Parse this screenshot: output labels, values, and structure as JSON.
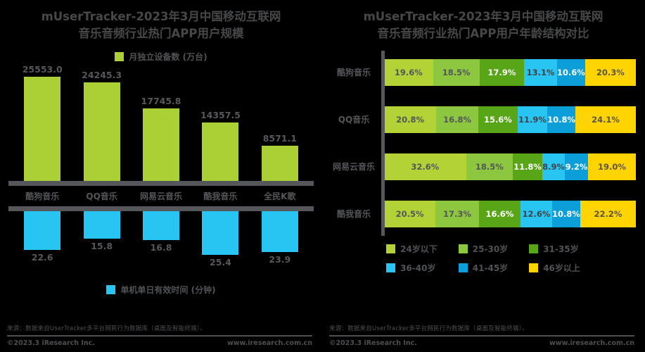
{
  "page": {
    "background": "#000000",
    "text_color": "#515255"
  },
  "chart_data": [
    {
      "type": "bar",
      "title_line1": "mUserTracker-2023年3月中国移动互联网",
      "title_line2": "音乐音频行业热门APP用户规模",
      "categories": [
        "酷狗音乐",
        "QQ音乐",
        "网易云音乐",
        "酷我音乐",
        "全民K歌"
      ],
      "series": [
        {
          "name": "月独立设备数 (万台)",
          "color": "#abd036",
          "orientation": "up",
          "values": [
            25553.0,
            24245.3,
            17745.8,
            14357.5,
            8571.1
          ],
          "labels": [
            "25553.0",
            "24245.3",
            "17745.8",
            "14357.5",
            "8571.1"
          ]
        },
        {
          "name": "单机单日有效时间 (分钟)",
          "color": "#29c5f2",
          "orientation": "down",
          "values": [
            22.6,
            15.8,
            16.8,
            25.4,
            23.9
          ],
          "labels": [
            "22.6",
            "15.8",
            "16.8",
            "25.4",
            "23.9"
          ]
        }
      ],
      "grid": false,
      "source_note": "来源：数据来自UserTracker多平台网民行为数据库（桌面及智能终端）。",
      "copyright": "©2023.3 iResearch Inc.",
      "website": "www.iresearch.com.cn"
    },
    {
      "type": "stacked-bar-horizontal",
      "title_line1": "mUserTracker-2023年3月中国移动互联网",
      "title_line2": "音乐音频行业热门APP用户年龄结构对比",
      "categories": [
        "酷狗音乐",
        "QQ音乐",
        "网易云音乐",
        "酷我音乐"
      ],
      "segments": [
        {
          "label": "24岁以下",
          "color": "#b2d235",
          "text_color": "#54565a"
        },
        {
          "label": "25-30岁",
          "color": "#8dc63f",
          "text_color": "#54565a"
        },
        {
          "label": "31-35岁",
          "color": "#58a618",
          "text_color": "#ffffff"
        },
        {
          "label": "36-40岁",
          "color": "#29c5f2",
          "text_color": "#3f4347"
        },
        {
          "label": "41-45岁",
          "color": "#0c9ed9",
          "text_color": "#ffffff"
        },
        {
          "label": "46岁以上",
          "color": "#ffd400",
          "text_color": "#5a5343"
        }
      ],
      "series": [
        {
          "name": "酷狗音乐",
          "values": [
            19.6,
            18.5,
            17.9,
            13.1,
            10.6,
            20.3
          ]
        },
        {
          "name": "QQ音乐",
          "values": [
            20.8,
            16.8,
            15.6,
            11.9,
            10.8,
            24.1
          ]
        },
        {
          "name": "网易云音乐",
          "values": [
            32.6,
            18.5,
            11.8,
            8.9,
            9.2,
            19.0
          ]
        },
        {
          "name": "酷我音乐",
          "values": [
            20.5,
            17.3,
            16.6,
            12.6,
            10.8,
            22.2
          ]
        }
      ],
      "value_suffix": "%",
      "xlim": [
        0,
        100
      ],
      "legend_position": "bottom",
      "source_note": "来源：数据来自UserTracker多平台网民行为数据库（桌面及智能终端）。",
      "copyright": "©2023.3 iResearch Inc.",
      "website": "www.iresearch.com.cn"
    }
  ]
}
